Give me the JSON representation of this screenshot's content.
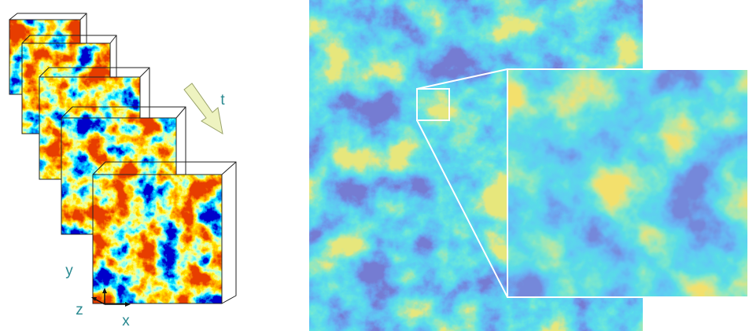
{
  "labels": {
    "time": "t",
    "y_axis": "y",
    "z_axis": "z",
    "x_axis": "x"
  }
}
